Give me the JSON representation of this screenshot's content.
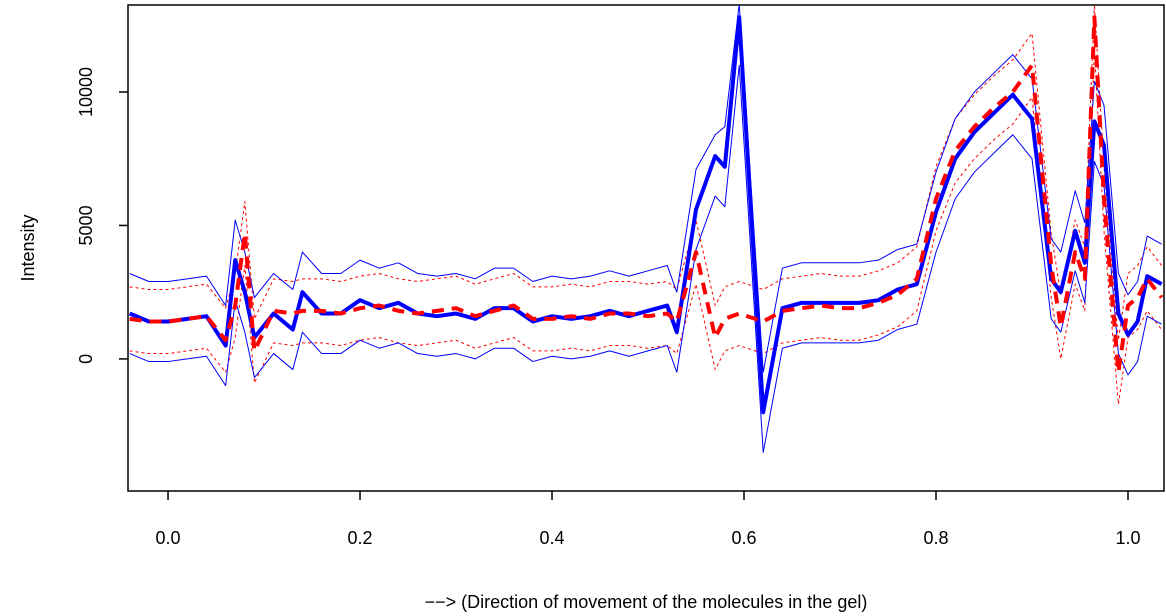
{
  "chart_data": {
    "type": "line",
    "xlabel": "−−> (Direction of movement of the molecules in the gel)",
    "ylabel": "Intensity",
    "x": [
      -0.04,
      -0.02,
      0.0,
      0.02,
      0.04,
      0.06,
      0.07,
      0.08,
      0.09,
      0.11,
      0.13,
      0.14,
      0.16,
      0.18,
      0.2,
      0.22,
      0.24,
      0.26,
      0.28,
      0.3,
      0.32,
      0.34,
      0.36,
      0.38,
      0.4,
      0.42,
      0.44,
      0.46,
      0.48,
      0.5,
      0.52,
      0.53,
      0.55,
      0.57,
      0.58,
      0.595,
      0.62,
      0.64,
      0.66,
      0.68,
      0.7,
      0.72,
      0.74,
      0.76,
      0.78,
      0.8,
      0.82,
      0.84,
      0.86,
      0.88,
      0.9,
      0.92,
      0.93,
      0.945,
      0.955,
      0.965,
      0.975,
      0.99,
      1.0,
      1.01,
      1.02,
      1.035
    ],
    "series": [
      {
        "color": "#ff0000",
        "width": 1,
        "dash": "3,3",
        "values": [
          2700,
          2600,
          2600,
          2700,
          2800,
          1900,
          3200,
          5900,
          1500,
          3000,
          2900,
          3000,
          3000,
          2900,
          3100,
          3200,
          3000,
          2900,
          3000,
          3100,
          2800,
          3000,
          3200,
          2700,
          2700,
          2800,
          2700,
          2900,
          2900,
          2800,
          2900,
          2600,
          5200,
          2000,
          2700,
          2900,
          2600,
          3000,
          3100,
          3200,
          3100,
          3100,
          3300,
          3600,
          4200,
          7200,
          9000,
          9900,
          10600,
          11200,
          12200,
          4700,
          2400,
          5200,
          4200,
          13300,
          7200,
          700,
          3200,
          3500,
          4200,
          3500
        ]
      },
      {
        "color": "#ff0000",
        "width": 1,
        "dash": "3,3",
        "values": [
          300,
          200,
          200,
          300,
          400,
          -500,
          800,
          3500,
          -900,
          600,
          500,
          600,
          600,
          500,
          700,
          800,
          600,
          500,
          600,
          700,
          400,
          600,
          800,
          300,
          300,
          400,
          300,
          500,
          500,
          400,
          500,
          200,
          2800,
          -400,
          300,
          500,
          200,
          600,
          700,
          800,
          700,
          700,
          900,
          1200,
          1800,
          4800,
          6600,
          7500,
          8200,
          8800,
          9800,
          2300,
          0,
          2800,
          1800,
          11600,
          4800,
          -1700,
          800,
          1100,
          1800,
          1100
        ]
      },
      {
        "color": "#0000ff",
        "width": 1,
        "dash": "none",
        "values": [
          3200,
          2900,
          2900,
          3000,
          3100,
          2000,
          5200,
          4000,
          2300,
          3200,
          2600,
          4000,
          3200,
          3200,
          3700,
          3400,
          3600,
          3200,
          3100,
          3200,
          3000,
          3400,
          3400,
          2900,
          3100,
          3000,
          3100,
          3300,
          3100,
          3300,
          3500,
          2500,
          7100,
          8400,
          8700,
          13300,
          -500,
          3400,
          3600,
          3600,
          3600,
          3600,
          3700,
          4100,
          4300,
          7000,
          9000,
          10000,
          10700,
          11400,
          10500,
          4500,
          4000,
          6300,
          5100,
          10400,
          9500,
          3200,
          2400,
          2900,
          4600,
          4300
        ]
      },
      {
        "color": "#0000ff",
        "width": 1,
        "dash": "none",
        "values": [
          200,
          -100,
          -100,
          0,
          100,
          -1000,
          2200,
          1000,
          -700,
          200,
          -400,
          1000,
          200,
          200,
          700,
          400,
          600,
          200,
          100,
          200,
          0,
          400,
          400,
          -100,
          100,
          0,
          100,
          300,
          100,
          300,
          500,
          -500,
          4100,
          6100,
          5700,
          11000,
          -3500,
          400,
          600,
          600,
          600,
          600,
          700,
          1100,
          1300,
          4000,
          6000,
          7000,
          7700,
          8400,
          7500,
          1500,
          1000,
          3300,
          2100,
          7400,
          6500,
          200,
          -600,
          -100,
          1600,
          1300
        ]
      },
      {
        "color": "#0000ff",
        "width": 4,
        "dash": "none",
        "values": [
          1700,
          1400,
          1400,
          1500,
          1600,
          500,
          3700,
          2500,
          800,
          1700,
          1100,
          2500,
          1700,
          1700,
          2200,
          1900,
          2100,
          1700,
          1600,
          1700,
          1500,
          1900,
          1900,
          1400,
          1600,
          1500,
          1600,
          1800,
          1600,
          1800,
          2000,
          1000,
          5600,
          7600,
          7200,
          12800,
          -2000,
          1900,
          2100,
          2100,
          2100,
          2100,
          2200,
          2600,
          2800,
          5500,
          7500,
          8500,
          9200,
          9900,
          9000,
          3000,
          2500,
          4800,
          3600,
          8900,
          8000,
          1700,
          900,
          1400,
          3100,
          2800
        ]
      },
      {
        "color": "#ff0000",
        "width": 4,
        "dash": "12,8",
        "values": [
          1500,
          1400,
          1400,
          1500,
          1600,
          700,
          2000,
          4700,
          300,
          1800,
          1700,
          1800,
          1800,
          1700,
          1900,
          2000,
          1800,
          1700,
          1800,
          1900,
          1600,
          1800,
          2000,
          1500,
          1500,
          1600,
          1500,
          1700,
          1700,
          1600,
          1700,
          1400,
          4000,
          800,
          1500,
          1700,
          1400,
          1800,
          1900,
          2000,
          1900,
          1900,
          2100,
          2400,
          3000,
          6000,
          7800,
          8700,
          9400,
          10000,
          11000,
          3500,
          1200,
          4000,
          3000,
          12800,
          6000,
          -500,
          2000,
          2300,
          3000,
          2300
        ]
      }
    ],
    "xlim": [
      -0.0417,
      1.0375
    ],
    "ylim": [
      -4950,
      13260
    ],
    "xticks": [
      {
        "value": 0,
        "label": "0.0"
      },
      {
        "value": 0.2,
        "label": "0.2"
      },
      {
        "value": 0.4,
        "label": "0.4"
      },
      {
        "value": 0.6,
        "label": "0.6"
      },
      {
        "value": 0.8,
        "label": "0.8"
      },
      {
        "value": 1,
        "label": "1.0"
      }
    ],
    "yticks": [
      0,
      5000,
      10000
    ]
  }
}
